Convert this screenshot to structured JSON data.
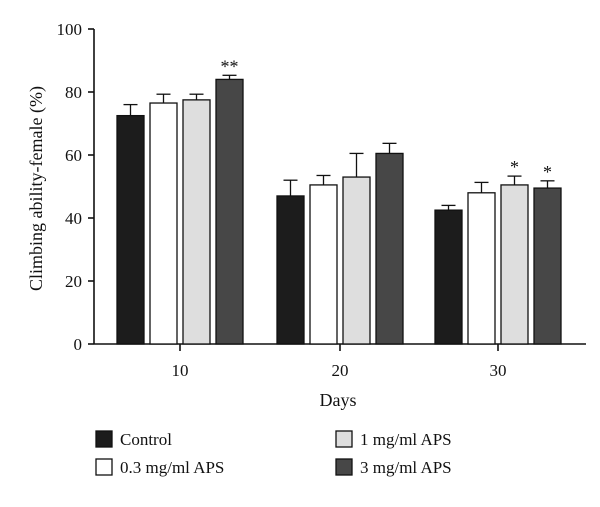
{
  "chart_data": {
    "type": "bar",
    "xlabel": "Days",
    "ylabel": "Climbing ability-female (%)",
    "ylim": [
      0,
      100
    ],
    "yticks": [
      0,
      20,
      40,
      60,
      80,
      100
    ],
    "categories": [
      "10",
      "20",
      "30"
    ],
    "grid": false,
    "legend_position": "bottom",
    "series": [
      {
        "name": "Control",
        "color": "#1c1c1c",
        "values": [
          72.5,
          47,
          42.5
        ],
        "errors": [
          3.5,
          5,
          1.5
        ],
        "significance": [
          "",
          "",
          ""
        ]
      },
      {
        "name": "0.3 mg/ml APS",
        "color": "#ffffff",
        "values": [
          76.5,
          50.5,
          48
        ],
        "errors": [
          2.8,
          3,
          3.3
        ],
        "significance": [
          "",
          "",
          ""
        ]
      },
      {
        "name": "1 mg/ml APS",
        "color": "#dedede",
        "values": [
          77.5,
          53,
          50.5
        ],
        "errors": [
          1.8,
          7.5,
          2.8
        ],
        "significance": [
          "",
          "",
          "*"
        ]
      },
      {
        "name": "3 mg/ml APS",
        "color": "#474747",
        "values": [
          84,
          60.5,
          49.5
        ],
        "errors": [
          1.3,
          3.2,
          2.3
        ],
        "significance": [
          "**",
          "",
          "*"
        ]
      }
    ]
  }
}
